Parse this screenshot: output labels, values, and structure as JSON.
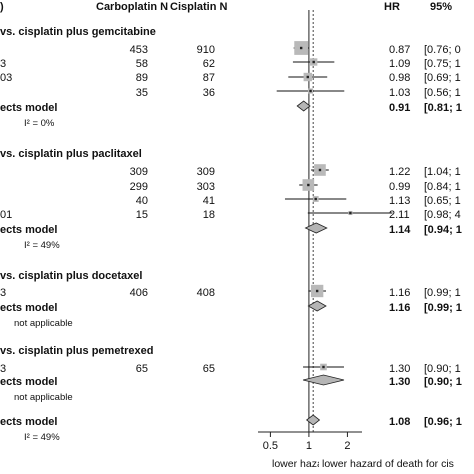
{
  "header": {
    "left_col": ")",
    "carboplatin_col": "Carboplatin N",
    "cisplatin_col": "Cisplatin N",
    "hr_col": "HR",
    "ci_col": "95%"
  },
  "groups": [
    {
      "title": "vs. cisplatin plus gemcitabine",
      "rows": [
        {
          "study": "",
          "carbo_n": "453",
          "cis_n": "910",
          "hr": "0.87",
          "ci": "[0.76; 0"
        },
        {
          "study": "3",
          "carbo_n": "58",
          "cis_n": "62",
          "hr": "1.09",
          "ci": "[0.75; 1"
        },
        {
          "study": "03",
          "carbo_n": "89",
          "cis_n": "87",
          "hr": "0.98",
          "ci": "[0.69; 1"
        },
        {
          "study": "",
          "carbo_n": "35",
          "cis_n": "36",
          "hr": "1.03",
          "ci": "[0.56; 1"
        }
      ],
      "model_label": "ects model",
      "model_hr": "0.91",
      "model_ci": "[0.81; 1",
      "heterogeneity": "I² = 0%"
    },
    {
      "title": "vs. cisplatin plus paclitaxel",
      "rows": [
        {
          "study": "",
          "carbo_n": "309",
          "cis_n": "309",
          "hr": "1.22",
          "ci": "[1.04; 1"
        },
        {
          "study": "",
          "carbo_n": "299",
          "cis_n": "303",
          "hr": "0.99",
          "ci": "[0.84; 1"
        },
        {
          "study": "",
          "carbo_n": "40",
          "cis_n": "41",
          "hr": "1.13",
          "ci": "[0.65; 1"
        },
        {
          "study": "01",
          "carbo_n": "15",
          "cis_n": "18",
          "hr": "2.11",
          "ci": "[0.98; 4"
        }
      ],
      "model_label": "ects model",
      "model_hr": "1.14",
      "model_ci": "[0.94; 1",
      "heterogeneity": "I² = 49%"
    },
    {
      "title": "vs. cisplatin plus docetaxel",
      "rows": [
        {
          "study": "3",
          "carbo_n": "406",
          "cis_n": "408",
          "hr": "1.16",
          "ci": "[0.99; 1"
        }
      ],
      "model_label": "ects model",
      "model_hr": "1.16",
      "model_ci": "[0.99; 1",
      "heterogeneity": "not applicable"
    },
    {
      "title": "vs. cisplatin plus pemetrexed",
      "rows": [
        {
          "study": "3",
          "carbo_n": "65",
          "cis_n": "65",
          "hr": "1.30",
          "ci": "[0.90; 1"
        }
      ],
      "model_label": "ects model",
      "model_hr": "1.30",
      "model_ci": "[0.90; 1",
      "heterogeneity": "not applicable"
    }
  ],
  "overall": {
    "label": "ects model",
    "hr": "1.08",
    "ci": "[0.96; 1",
    "heterogeneity": "I² = 49%"
  },
  "axis": {
    "ticks": [
      "0.5",
      "1",
      "2"
    ],
    "left_label": "lower hazard of death for carboplatin",
    "right_label": "lower hazard of death for cis"
  },
  "chart_data": {
    "type": "forest",
    "scale": "log",
    "xlim": [
      0.4,
      2.6
    ],
    "reference_line": 1,
    "overall_dotted_line": 1.08,
    "studies": [
      {
        "group": 0,
        "hr": 0.87,
        "lo": 0.76,
        "hi": 1.0,
        "weight": 3
      },
      {
        "group": 0,
        "hr": 1.09,
        "lo": 0.75,
        "hi": 1.58,
        "weight": 1.2
      },
      {
        "group": 0,
        "hr": 0.98,
        "lo": 0.69,
        "hi": 1.39,
        "weight": 1.5
      },
      {
        "group": 0,
        "hr": 1.03,
        "lo": 0.56,
        "hi": 1.89,
        "weight": 0.6
      },
      {
        "group": 1,
        "hr": 1.22,
        "lo": 1.04,
        "hi": 1.43,
        "weight": 2.4
      },
      {
        "group": 1,
        "hr": 0.99,
        "lo": 0.84,
        "hi": 1.17,
        "weight": 2.4
      },
      {
        "group": 1,
        "hr": 1.13,
        "lo": 0.65,
        "hi": 1.96,
        "weight": 0.8
      },
      {
        "group": 1,
        "hr": 2.11,
        "lo": 0.98,
        "hi": 4.5,
        "weight": 0.3
      },
      {
        "group": 2,
        "hr": 1.16,
        "lo": 0.99,
        "hi": 1.36,
        "weight": 2.6
      },
      {
        "group": 3,
        "hr": 1.3,
        "lo": 0.9,
        "hi": 1.88,
        "weight": 1.0
      }
    ],
    "models": [
      {
        "group": 0,
        "hr": 0.91,
        "lo": 0.81,
        "hi": 1.02
      },
      {
        "group": 1,
        "hr": 1.14,
        "lo": 0.94,
        "hi": 1.38
      },
      {
        "group": 2,
        "hr": 1.16,
        "lo": 0.99,
        "hi": 1.36
      },
      {
        "group": 3,
        "hr": 1.3,
        "lo": 0.9,
        "hi": 1.88
      },
      {
        "group": "overall",
        "hr": 1.08,
        "lo": 0.96,
        "hi": 1.21
      }
    ]
  }
}
